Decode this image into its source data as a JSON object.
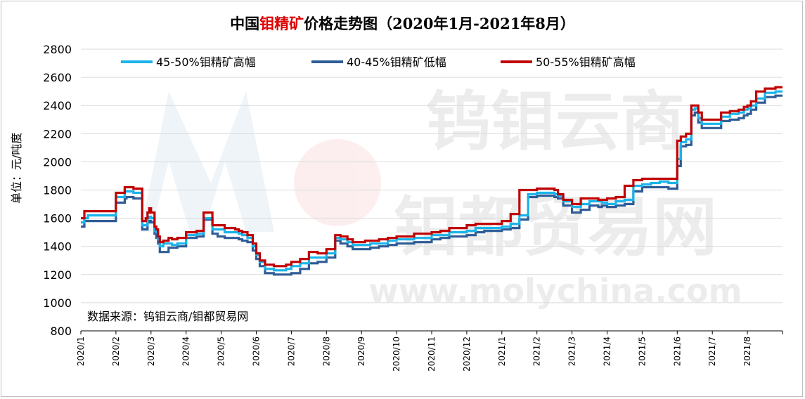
{
  "title_pre": "中国",
  "title_highlight": "钼精矿",
  "title_post": "价格走势图（2020年1月-2021年8月）",
  "source_note": "数据来源：钨钼云商/钼都贸易网",
  "watermark": {
    "cn_line1": "钨钼云商",
    "cn_line2": "钼都贸易网",
    "url": "www.molychina.com"
  },
  "chart_data": {
    "type": "line",
    "title": "中国钼精矿价格走势图（2020年1月-2021年8月）",
    "ylabel": "单位：元/吨度",
    "xlabel": "",
    "ylim": [
      800,
      2800
    ],
    "yticks": [
      800,
      1000,
      1200,
      1400,
      1600,
      1800,
      2000,
      2200,
      2400,
      2600,
      2800
    ],
    "xticks": [
      "2020/1",
      "2020/2",
      "2020/3",
      "2020/4",
      "2020/5",
      "2020/6",
      "2020/7",
      "2020/8",
      "2020/9",
      "2020/10",
      "2020/11",
      "2020/12",
      "2021/1",
      "2021/2",
      "2021/3",
      "2021/4",
      "2021/5",
      "2021/6",
      "2021/7",
      "2021/8"
    ],
    "grid": "horizontal",
    "legend_position": "top",
    "x_months": [
      1.0,
      1.1,
      1.2,
      1.5,
      1.95,
      2.0,
      2.25,
      2.3,
      2.5,
      2.6,
      2.75,
      2.85,
      2.9,
      2.95,
      3.0,
      3.1,
      3.15,
      3.2,
      3.25,
      3.35,
      3.5,
      3.6,
      3.75,
      4.0,
      4.2,
      4.3,
      4.5,
      4.75,
      4.9,
      5.1,
      5.3,
      5.4,
      5.5,
      5.6,
      5.75,
      5.9,
      6.0,
      6.1,
      6.25,
      6.5,
      6.75,
      6.85,
      7.0,
      7.25,
      7.5,
      7.75,
      8.0,
      8.25,
      8.4,
      8.6,
      8.75,
      9.0,
      9.1,
      9.25,
      9.5,
      9.75,
      10.0,
      10.5,
      11.0,
      11.25,
      11.5,
      12.0,
      12.25,
      12.5,
      12.75,
      13.0,
      13.25,
      13.5,
      13.75,
      14.0,
      14.5,
      14.6,
      14.75,
      15.0,
      15.25,
      15.5,
      15.75,
      15.85,
      16.0,
      16.25,
      16.5,
      16.75,
      17.0,
      17.25,
      17.5,
      17.75,
      18.0,
      18.1,
      18.25,
      18.4,
      18.5,
      18.6,
      18.7,
      18.75,
      19.0,
      19.25,
      19.5,
      19.75,
      19.9,
      20.0,
      20.1,
      20.25,
      20.5,
      20.8
    ],
    "series": [
      {
        "name": "45-50%钼精矿高幅",
        "color": "#1ab4ea",
        "values": [
          1570,
          1600,
          1620,
          1620,
          1620,
          1750,
          1790,
          1790,
          1780,
          1780,
          1550,
          1550,
          1600,
          1610,
          1600,
          1510,
          1500,
          1450,
          1400,
          1420,
          1420,
          1410,
          1420,
          1480,
          1480,
          1490,
          1600,
          1520,
          1520,
          1500,
          1500,
          1500,
          1490,
          1480,
          1460,
          1400,
          1340,
          1290,
          1240,
          1230,
          1230,
          1240,
          1260,
          1280,
          1320,
          1320,
          1350,
          1460,
          1450,
          1430,
          1410,
          1410,
          1410,
          1420,
          1420,
          1440,
          1450,
          1460,
          1480,
          1480,
          1500,
          1510,
          1530,
          1530,
          1530,
          1540,
          1560,
          1620,
          1770,
          1780,
          1770,
          1760,
          1720,
          1680,
          1700,
          1720,
          1720,
          1710,
          1700,
          1720,
          1730,
          1830,
          1840,
          1850,
          1860,
          1850,
          2020,
          2140,
          2160,
          2370,
          2380,
          2310,
          2270,
          2270,
          2270,
          2320,
          2340,
          2350,
          2370,
          2380,
          2400,
          2450,
          2490,
          2500
        ]
      },
      {
        "name": "40-45%钼精矿低幅",
        "color": "#2e5c96",
        "values": [
          1540,
          1580,
          1580,
          1580,
          1580,
          1710,
          1740,
          1750,
          1740,
          1740,
          1520,
          1520,
          1570,
          1580,
          1570,
          1490,
          1460,
          1420,
          1360,
          1360,
          1390,
          1390,
          1400,
          1460,
          1460,
          1470,
          1590,
          1490,
          1470,
          1460,
          1460,
          1460,
          1450,
          1440,
          1430,
          1370,
          1310,
          1260,
          1210,
          1200,
          1200,
          1200,
          1210,
          1240,
          1280,
          1290,
          1320,
          1440,
          1420,
          1400,
          1380,
          1380,
          1380,
          1390,
          1400,
          1410,
          1420,
          1430,
          1450,
          1460,
          1470,
          1480,
          1500,
          1510,
          1510,
          1520,
          1530,
          1590,
          1750,
          1760,
          1750,
          1740,
          1690,
          1640,
          1660,
          1690,
          1680,
          1690,
          1680,
          1690,
          1700,
          1790,
          1820,
          1820,
          1820,
          1810,
          1970,
          2110,
          2120,
          2330,
          2350,
          2280,
          2240,
          2240,
          2240,
          2290,
          2300,
          2310,
          2330,
          2340,
          2370,
          2420,
          2460,
          2470
        ]
      },
      {
        "name": "50-55%钼精矿高幅",
        "color": "#c00000",
        "values": [
          1600,
          1650,
          1650,
          1650,
          1650,
          1780,
          1820,
          1820,
          1810,
          1810,
          1580,
          1600,
          1640,
          1670,
          1640,
          1540,
          1520,
          1470,
          1430,
          1440,
          1460,
          1450,
          1460,
          1500,
          1500,
          1510,
          1640,
          1550,
          1550,
          1530,
          1530,
          1520,
          1510,
          1500,
          1480,
          1420,
          1350,
          1300,
          1270,
          1260,
          1260,
          1270,
          1290,
          1310,
          1360,
          1350,
          1380,
          1480,
          1470,
          1450,
          1430,
          1430,
          1440,
          1440,
          1450,
          1460,
          1470,
          1490,
          1500,
          1510,
          1530,
          1550,
          1560,
          1560,
          1560,
          1580,
          1630,
          1800,
          1800,
          1810,
          1800,
          1770,
          1730,
          1700,
          1740,
          1740,
          1730,
          1730,
          1740,
          1750,
          1830,
          1870,
          1880,
          1880,
          1880,
          1880,
          2150,
          2180,
          2200,
          2400,
          2400,
          2350,
          2300,
          2300,
          2300,
          2350,
          2360,
          2370,
          2390,
          2400,
          2430,
          2500,
          2520,
          2530
        ]
      }
    ]
  }
}
